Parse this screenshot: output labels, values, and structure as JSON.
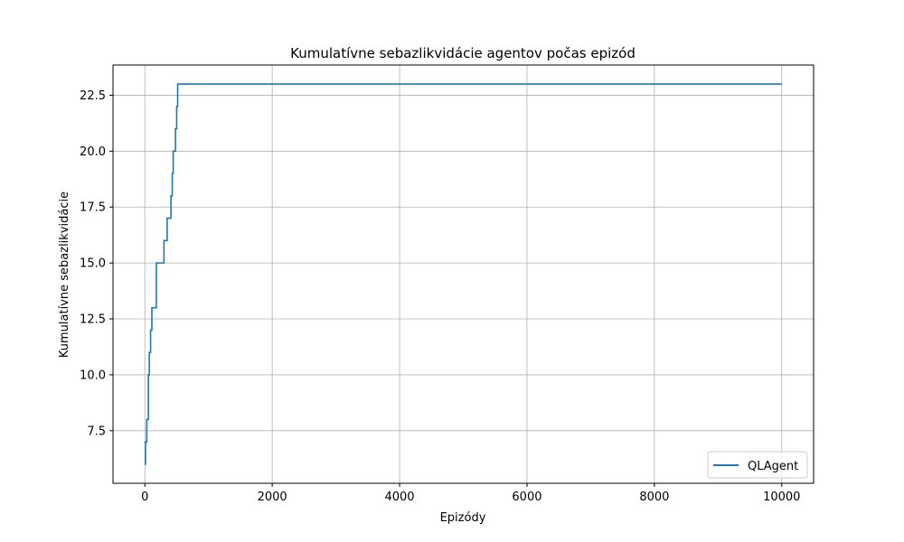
{
  "chart_data": {
    "type": "line",
    "title": "Kumulatívne sebazlikvidácie agentov počas epizód",
    "xlabel": "Epizódy",
    "ylabel": "Kumulatívne sebazlikvidácie",
    "xlim": [
      -500,
      10500
    ],
    "ylim": [
      5.15,
      23.85
    ],
    "xticks": [
      0,
      2000,
      4000,
      6000,
      8000,
      10000
    ],
    "xtick_labels": [
      "0",
      "2000",
      "4000",
      "6000",
      "8000",
      "10000"
    ],
    "yticks": [
      7.5,
      10.0,
      12.5,
      15.0,
      17.5,
      20.0,
      22.5
    ],
    "ytick_labels": [
      "7.5",
      "10.0",
      "12.5",
      "15.0",
      "17.5",
      "20.0",
      "22.5"
    ],
    "grid": true,
    "legend_position": "lower right",
    "series": [
      {
        "name": "QLAgent",
        "color": "#1f77b4",
        "step": "post",
        "x": [
          0,
          10,
          30,
          55,
          70,
          90,
          110,
          180,
          300,
          350,
          410,
          430,
          445,
          460,
          480,
          500,
          515,
          530,
          10000
        ],
        "y": [
          6,
          7,
          8,
          10,
          11,
          12,
          13,
          15,
          16,
          17,
          18,
          19,
          20,
          20,
          21,
          22,
          23,
          23,
          23
        ]
      }
    ]
  }
}
